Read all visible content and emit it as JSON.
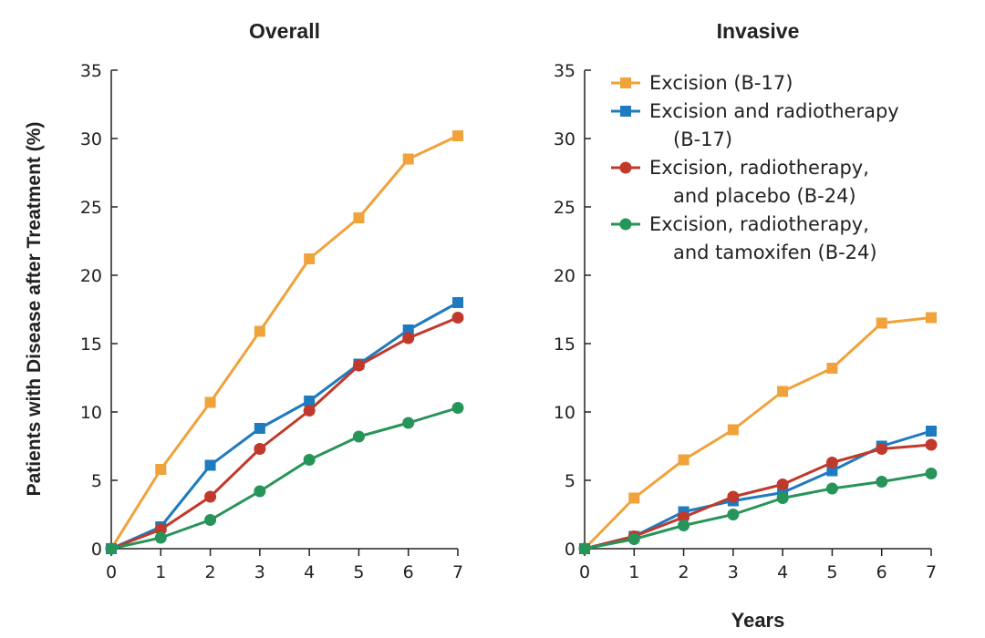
{
  "colors": {
    "excision": "#f0a23b",
    "excision_rt": "#1f7bbf",
    "placebo": "#c0392b",
    "tamoxifen": "#27945a",
    "axis": "#222222"
  },
  "ylabel": "Patients with Disease after Treatment  (%)",
  "xlabel": "Years",
  "legend": {
    "placement": "top-right of right panel",
    "items": [
      {
        "key": "excision",
        "marker": "square",
        "lines": [
          "Excision (B-17)"
        ]
      },
      {
        "key": "excision_rt",
        "marker": "square",
        "lines": [
          "Excision and radiotherapy",
          "(B-17)"
        ]
      },
      {
        "key": "placebo",
        "marker": "circle",
        "lines": [
          "Excision, radiotherapy,",
          "and placebo (B-24)"
        ]
      },
      {
        "key": "tamoxifen",
        "marker": "circle",
        "lines": [
          "Excision, radiotherapy,",
          "and tamoxifen (B-24)"
        ]
      }
    ]
  },
  "chart_data": [
    {
      "type": "line",
      "title": "Overall",
      "xlabel": "",
      "ylabel": "Patients with Disease after Treatment  (%)",
      "x": [
        0,
        1,
        2,
        3,
        4,
        5,
        6,
        7
      ],
      "xlim": [
        0,
        7
      ],
      "ylim": [
        0,
        35
      ],
      "xticks": [
        0,
        1,
        2,
        3,
        4,
        5,
        6,
        7
      ],
      "yticks": [
        0,
        5,
        10,
        15,
        20,
        25,
        30,
        35
      ],
      "grid": false,
      "series": [
        {
          "name": "Excision (B-17)",
          "key": "excision",
          "marker": "square",
          "values": [
            0,
            5.8,
            10.7,
            15.9,
            21.2,
            24.2,
            28.5,
            30.2
          ]
        },
        {
          "name": "Excision and radiotherapy (B-17)",
          "key": "excision_rt",
          "marker": "square",
          "values": [
            0,
            1.6,
            6.1,
            8.8,
            10.8,
            13.5,
            16.0,
            18.0
          ]
        },
        {
          "name": "Excision, radiotherapy, and placebo (B-24)",
          "key": "placebo",
          "marker": "circle",
          "values": [
            0,
            1.4,
            3.8,
            7.3,
            10.1,
            13.4,
            15.4,
            16.9
          ]
        },
        {
          "name": "Excision, radiotherapy, and tamoxifen (B-24)",
          "key": "tamoxifen",
          "marker": "circle",
          "values": [
            0,
            0.8,
            2.1,
            4.2,
            6.5,
            8.2,
            9.2,
            10.3
          ]
        }
      ]
    },
    {
      "type": "line",
      "title": "Invasive",
      "xlabel": "Years",
      "ylabel": "",
      "x": [
        0,
        1,
        2,
        3,
        4,
        5,
        6,
        7
      ],
      "xlim": [
        0,
        7
      ],
      "ylim": [
        0,
        35
      ],
      "xticks": [
        0,
        1,
        2,
        3,
        4,
        5,
        6,
        7
      ],
      "yticks": [
        0,
        5,
        10,
        15,
        20,
        25,
        30,
        35
      ],
      "grid": false,
      "series": [
        {
          "name": "Excision (B-17)",
          "key": "excision",
          "marker": "square",
          "values": [
            0,
            3.7,
            6.5,
            8.7,
            11.5,
            13.2,
            16.5,
            16.9
          ]
        },
        {
          "name": "Excision and radiotherapy (B-17)",
          "key": "excision_rt",
          "marker": "square",
          "values": [
            0,
            0.9,
            2.7,
            3.5,
            4.1,
            5.7,
            7.5,
            8.6
          ]
        },
        {
          "name": "Excision, radiotherapy, and placebo (B-24)",
          "key": "placebo",
          "marker": "circle",
          "values": [
            0,
            0.9,
            2.3,
            3.8,
            4.7,
            6.3,
            7.3,
            7.6
          ]
        },
        {
          "name": "Excision, radiotherapy, and tamoxifen (B-24)",
          "key": "tamoxifen",
          "marker": "circle",
          "values": [
            0,
            0.7,
            1.7,
            2.5,
            3.7,
            4.4,
            4.9,
            5.5
          ]
        }
      ]
    }
  ]
}
